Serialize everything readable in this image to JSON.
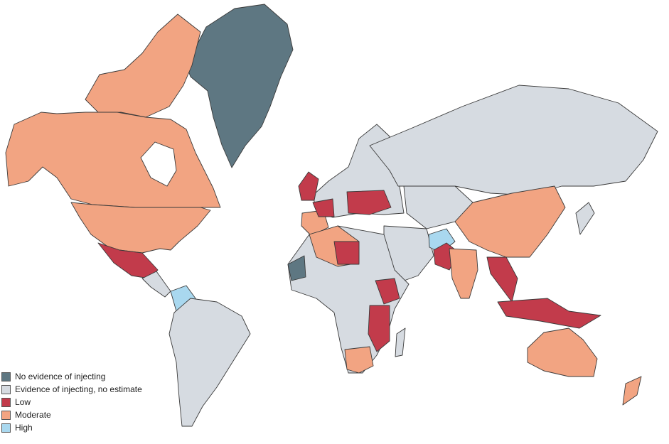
{
  "colors": {
    "no_evidence": "#5e7782",
    "evidence_no_estimate": "#d6dbe1",
    "low": "#c23b4b",
    "moderate": "#f2a482",
    "high": "#a9d8ef"
  },
  "legend": [
    {
      "key": "no_evidence",
      "label": "No evidence of injecting"
    },
    {
      "key": "evidence_no_estimate",
      "label": "Evidence of injecting, no estimate"
    },
    {
      "key": "low",
      "label": "Low"
    },
    {
      "key": "moderate",
      "label": "Moderate"
    },
    {
      "key": "high",
      "label": "High"
    }
  ]
}
